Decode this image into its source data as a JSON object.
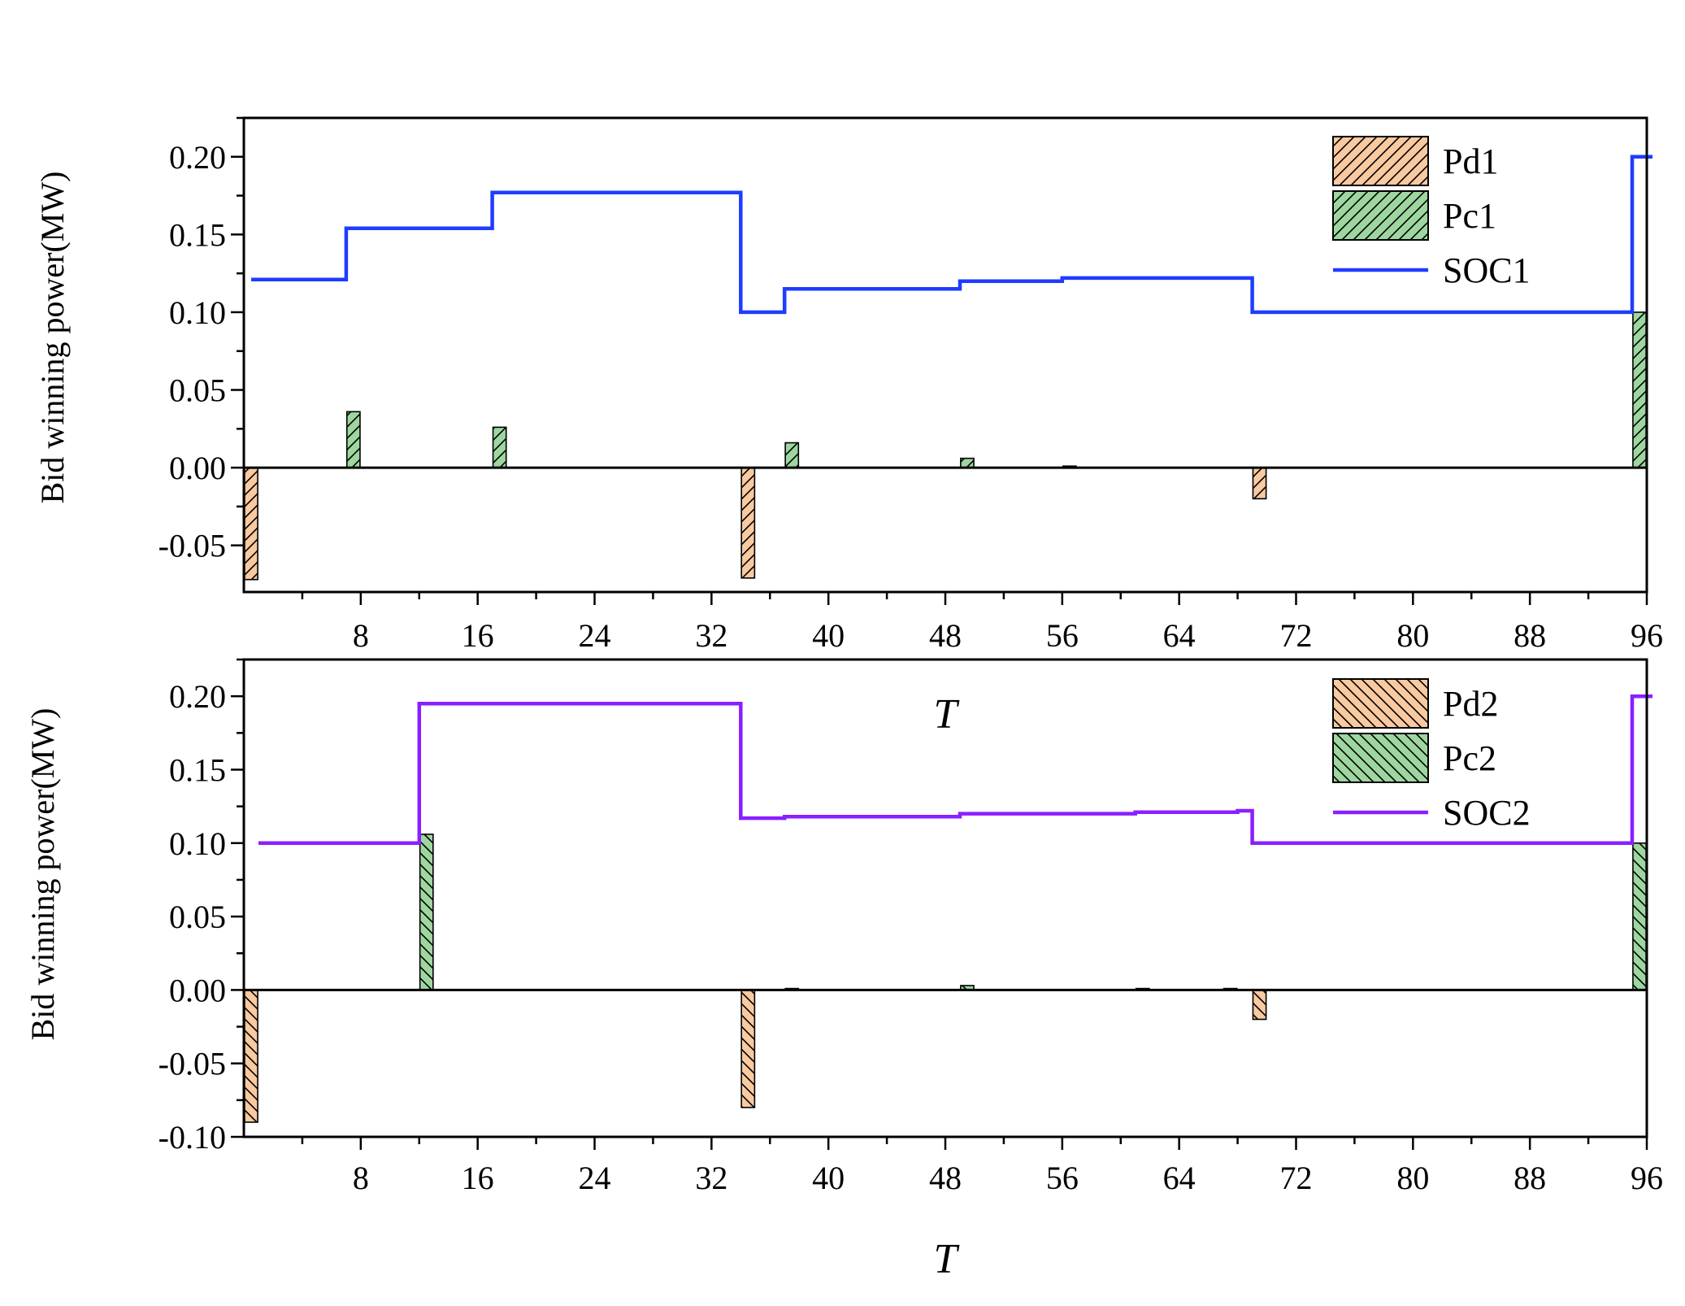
{
  "chart_data": [
    {
      "type": "bar",
      "ylabel": "Bid winning power(MW)",
      "xlabel": "T",
      "xlim": [
        0,
        96
      ],
      "ylim": [
        -0.08,
        0.225
      ],
      "x_ticks": [
        8,
        16,
        24,
        32,
        40,
        48,
        56,
        64,
        72,
        80,
        88,
        96
      ],
      "y_ticks": [
        -0.05,
        0.0,
        0.05,
        0.1,
        0.15,
        0.2
      ],
      "y_tick_labels": [
        "-0.05",
        "0.00",
        "0.05",
        "0.10",
        "0.15",
        "0.20"
      ],
      "x_tick_labels": [
        "8",
        "16",
        "24",
        "32",
        "40",
        "48",
        "56",
        "64",
        "72",
        "80",
        "88",
        "96"
      ],
      "legend_position": "top-right",
      "colors": {
        "discharge": "#f9c9a0",
        "charge": "#9ed6a0",
        "soc": "#1f3cff"
      },
      "series": [
        {
          "name": "Pd1",
          "kind": "bar",
          "hatch": "forward",
          "x": [
            1,
            35,
            70
          ],
          "values": [
            -0.072,
            -0.071,
            -0.02
          ]
        },
        {
          "name": "Pc1",
          "kind": "bar",
          "hatch": "forward",
          "x": [
            8,
            18,
            38,
            50,
            57,
            96
          ],
          "values": [
            0.036,
            0.026,
            0.016,
            0.006,
            0.001,
            0.1
          ]
        },
        {
          "name": "SOC1",
          "kind": "step-line",
          "x": [
            0.5,
            7,
            17,
            34,
            37,
            49,
            56,
            69,
            95,
            95.5
          ],
          "values": [
            0.121,
            0.154,
            0.177,
            0.1,
            0.115,
            0.12,
            0.122,
            0.1,
            0.2,
            0.2
          ]
        }
      ]
    },
    {
      "type": "bar",
      "ylabel": "Bid winning power(MW)",
      "xlabel": "T",
      "xlim": [
        0,
        96
      ],
      "ylim": [
        -0.1,
        0.225
      ],
      "x_ticks": [
        8,
        16,
        24,
        32,
        40,
        48,
        56,
        64,
        72,
        80,
        88,
        96
      ],
      "y_ticks": [
        -0.1,
        -0.05,
        0.0,
        0.05,
        0.1,
        0.15,
        0.2
      ],
      "y_tick_labels": [
        "-0.10",
        "-0.05",
        "0.00",
        "0.05",
        "0.10",
        "0.15",
        "0.20"
      ],
      "x_tick_labels": [
        "8",
        "16",
        "24",
        "32",
        "40",
        "48",
        "56",
        "64",
        "72",
        "80",
        "88",
        "96"
      ],
      "legend_position": "top-right",
      "colors": {
        "discharge": "#f9c9a0",
        "charge": "#9ed6a0",
        "soc": "#8a1fff"
      },
      "series": [
        {
          "name": "Pd2",
          "kind": "bar",
          "hatch": "backward",
          "x": [
            1,
            35,
            70
          ],
          "values": [
            -0.09,
            -0.08,
            -0.02
          ]
        },
        {
          "name": "Pc2",
          "kind": "bar",
          "hatch": "backward",
          "x": [
            13,
            38,
            50,
            62,
            68,
            96
          ],
          "values": [
            0.106,
            0.001,
            0.003,
            0.001,
            0.001,
            0.1
          ]
        },
        {
          "name": "SOC2",
          "kind": "step-line",
          "x": [
            1,
            12,
            34,
            37,
            49,
            61,
            68,
            69,
            95,
            95.5
          ],
          "values": [
            0.1,
            0.195,
            0.117,
            0.118,
            0.12,
            0.121,
            0.122,
            0.1,
            0.2,
            0.2
          ]
        }
      ]
    }
  ]
}
